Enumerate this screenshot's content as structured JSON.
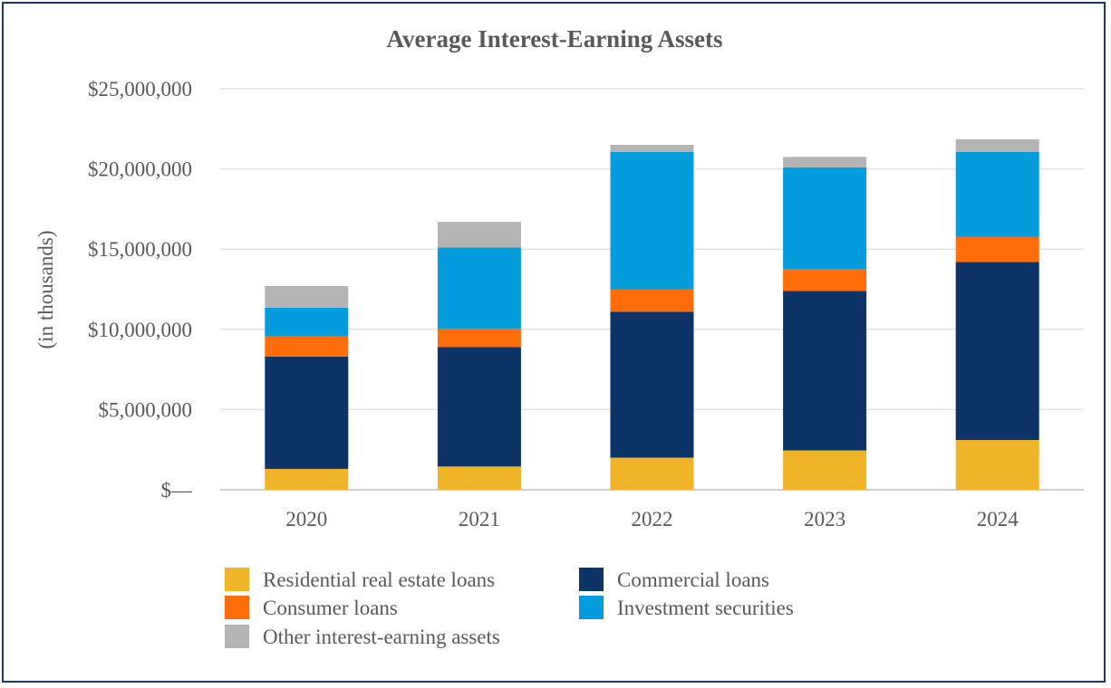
{
  "chart_data": {
    "type": "bar",
    "stacked": true,
    "title": "Average Interest-Earning Assets",
    "xlabel": "",
    "ylabel": "(in thousands)",
    "categories": [
      "2020",
      "2021",
      "2022",
      "2023",
      "2024"
    ],
    "ylim": [
      0,
      25000000
    ],
    "yticks": [
      0,
      5000000,
      10000000,
      15000000,
      20000000,
      25000000
    ],
    "ytick_labels": [
      "$—",
      "$5,000,000",
      "$10,000,000",
      "$15,000,000",
      "$20,000,000",
      "$25,000,000"
    ],
    "grid": true,
    "legend_position": "bottom",
    "series": [
      {
        "name": "Residential real estate loans",
        "color": "#f0b429",
        "values": [
          1300000,
          1450000,
          2000000,
          2450000,
          3100000
        ]
      },
      {
        "name": "Commercial loans",
        "color": "#0d3466",
        "values": [
          7000000,
          7450000,
          9100000,
          9950000,
          11100000
        ]
      },
      {
        "name": "Consumer loans",
        "color": "#ff6d0a",
        "values": [
          1250000,
          1150000,
          1400000,
          1350000,
          1550000
        ]
      },
      {
        "name": "Investment securities",
        "color": "#049cdc",
        "values": [
          1800000,
          5050000,
          8550000,
          6350000,
          5300000
        ]
      },
      {
        "name": "Other interest-earning assets",
        "color": "#b4b4b4",
        "values": [
          1350000,
          1600000,
          450000,
          650000,
          800000
        ]
      }
    ]
  }
}
